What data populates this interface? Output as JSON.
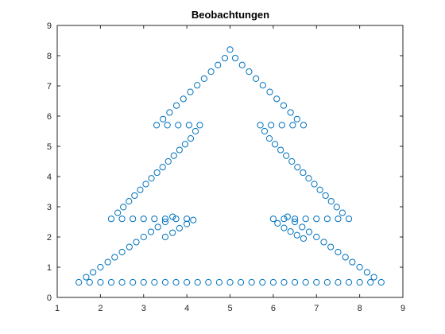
{
  "chart_data": {
    "type": "scatter",
    "title": "Beobachtungen",
    "xlabel": "",
    "ylabel": "",
    "xlim": [
      1,
      9
    ],
    "ylim": [
      0,
      9
    ],
    "xticks": [
      "1",
      "2",
      "3",
      "4",
      "5",
      "6",
      "7",
      "8",
      "9"
    ],
    "yticks": [
      "0",
      "1",
      "2",
      "3",
      "4",
      "5",
      "6",
      "7",
      "8",
      "9"
    ],
    "grid": false,
    "marker": "circle",
    "marker_color": "#0072BD",
    "series": [
      {
        "points": [
          [
            1.5,
            0.5
          ],
          [
            1.75,
            0.5
          ],
          [
            2.0,
            0.5
          ],
          [
            2.25,
            0.5
          ],
          [
            2.5,
            0.5
          ],
          [
            2.75,
            0.5
          ],
          [
            3.0,
            0.5
          ],
          [
            3.25,
            0.5
          ],
          [
            3.5,
            0.5
          ],
          [
            3.75,
            0.5
          ],
          [
            4.0,
            0.5
          ],
          [
            4.25,
            0.5
          ],
          [
            4.5,
            0.5
          ],
          [
            4.75,
            0.5
          ],
          [
            5.0,
            0.5
          ],
          [
            5.25,
            0.5
          ],
          [
            5.5,
            0.5
          ],
          [
            5.75,
            0.5
          ],
          [
            6.0,
            0.5
          ],
          [
            6.25,
            0.5
          ],
          [
            6.5,
            0.5
          ],
          [
            6.75,
            0.5
          ],
          [
            7.0,
            0.5
          ],
          [
            7.25,
            0.5
          ],
          [
            7.5,
            0.5
          ],
          [
            7.75,
            0.5
          ],
          [
            8.0,
            0.5
          ],
          [
            8.25,
            0.5
          ],
          [
            8.5,
            0.5
          ],
          [
            1.67,
            0.67
          ],
          [
            1.83,
            0.83
          ],
          [
            2.0,
            1.0
          ],
          [
            2.17,
            1.17
          ],
          [
            2.33,
            1.33
          ],
          [
            2.5,
            1.5
          ],
          [
            2.67,
            1.67
          ],
          [
            2.83,
            1.83
          ],
          [
            3.0,
            2.0
          ],
          [
            3.17,
            2.17
          ],
          [
            3.33,
            2.33
          ],
          [
            3.5,
            2.5
          ],
          [
            3.67,
            2.67
          ],
          [
            8.33,
            0.67
          ],
          [
            8.17,
            0.83
          ],
          [
            8.0,
            1.0
          ],
          [
            7.83,
            1.17
          ],
          [
            7.67,
            1.33
          ],
          [
            7.5,
            1.5
          ],
          [
            7.33,
            1.67
          ],
          [
            7.17,
            1.83
          ],
          [
            7.0,
            2.0
          ],
          [
            6.83,
            2.17
          ],
          [
            6.67,
            2.33
          ],
          [
            6.5,
            2.5
          ],
          [
            6.33,
            2.67
          ],
          [
            3.5,
            2.0
          ],
          [
            3.67,
            2.14
          ],
          [
            3.83,
            2.29
          ],
          [
            4.0,
            2.43
          ],
          [
            4.15,
            2.56
          ],
          [
            6.1,
            2.45
          ],
          [
            6.25,
            2.3
          ],
          [
            6.4,
            2.18
          ],
          [
            6.55,
            2.06
          ],
          [
            6.7,
            1.95
          ],
          [
            2.25,
            2.6
          ],
          [
            2.5,
            2.6
          ],
          [
            2.75,
            2.6
          ],
          [
            3.0,
            2.6
          ],
          [
            3.25,
            2.6
          ],
          [
            3.5,
            2.6
          ],
          [
            3.75,
            2.6
          ],
          [
            4.0,
            2.6
          ],
          [
            6.0,
            2.6
          ],
          [
            6.25,
            2.6
          ],
          [
            6.5,
            2.6
          ],
          [
            6.75,
            2.6
          ],
          [
            7.0,
            2.6
          ],
          [
            7.25,
            2.6
          ],
          [
            7.5,
            2.6
          ],
          [
            7.75,
            2.6
          ],
          [
            2.4,
            2.8
          ],
          [
            2.53,
            2.99
          ],
          [
            2.66,
            3.18
          ],
          [
            2.79,
            3.37
          ],
          [
            2.92,
            3.56
          ],
          [
            3.05,
            3.75
          ],
          [
            3.18,
            3.94
          ],
          [
            3.31,
            4.13
          ],
          [
            3.44,
            4.31
          ],
          [
            3.57,
            4.5
          ],
          [
            3.7,
            4.69
          ],
          [
            3.83,
            4.88
          ],
          [
            3.96,
            5.07
          ],
          [
            4.09,
            5.26
          ],
          [
            4.2,
            5.5
          ],
          [
            7.6,
            2.8
          ],
          [
            7.47,
            2.99
          ],
          [
            7.34,
            3.18
          ],
          [
            7.21,
            3.37
          ],
          [
            7.08,
            3.56
          ],
          [
            6.95,
            3.75
          ],
          [
            6.82,
            3.94
          ],
          [
            6.69,
            4.13
          ],
          [
            6.56,
            4.31
          ],
          [
            6.43,
            4.5
          ],
          [
            6.3,
            4.69
          ],
          [
            6.17,
            4.88
          ],
          [
            6.04,
            5.07
          ],
          [
            5.91,
            5.26
          ],
          [
            5.8,
            5.5
          ],
          [
            3.3,
            5.7
          ],
          [
            3.55,
            5.7
          ],
          [
            3.8,
            5.7
          ],
          [
            4.05,
            5.7
          ],
          [
            4.3,
            5.7
          ],
          [
            5.7,
            5.7
          ],
          [
            5.95,
            5.7
          ],
          [
            6.2,
            5.7
          ],
          [
            6.45,
            5.7
          ],
          [
            6.7,
            5.7
          ],
          [
            3.45,
            5.9
          ],
          [
            3.6,
            6.12
          ],
          [
            3.76,
            6.35
          ],
          [
            3.92,
            6.57
          ],
          [
            4.08,
            6.8
          ],
          [
            4.24,
            7.02
          ],
          [
            4.4,
            7.24
          ],
          [
            4.56,
            7.47
          ],
          [
            4.72,
            7.69
          ],
          [
            4.88,
            7.92
          ],
          [
            5.0,
            8.2
          ],
          [
            6.55,
            5.9
          ],
          [
            6.4,
            6.12
          ],
          [
            6.24,
            6.35
          ],
          [
            6.08,
            6.57
          ],
          [
            5.92,
            6.8
          ],
          [
            5.76,
            7.02
          ],
          [
            5.6,
            7.24
          ],
          [
            5.44,
            7.47
          ],
          [
            5.28,
            7.69
          ],
          [
            5.12,
            7.92
          ]
        ]
      }
    ]
  }
}
